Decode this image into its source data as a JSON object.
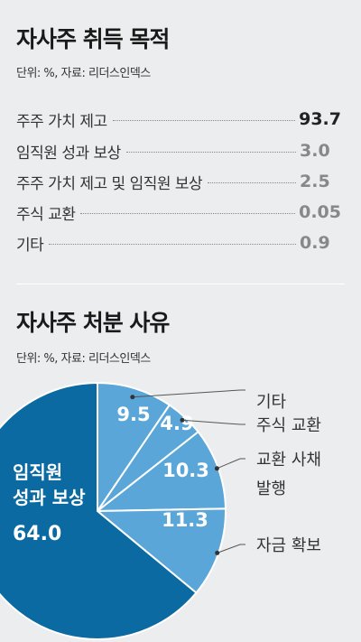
{
  "acquisition": {
    "title": "자사주 취득 목적",
    "unit": "단위: %, 자료: 리더스인덱스",
    "items": [
      {
        "label": "주주 가치 제고",
        "value": "93.7"
      },
      {
        "label": "임직원 성과 보상",
        "value": "3.0"
      },
      {
        "label": "주주 가치 제고 및 임직원 보상",
        "value": "2.5"
      },
      {
        "label": "주식 교환",
        "value": "0.05"
      },
      {
        "label": "기타",
        "value": "0.9"
      }
    ]
  },
  "disposal": {
    "title": "자사주 처분 사유",
    "unit": "단위: %, 자료: 리더스인덱스"
  },
  "chart_data": [
    {
      "type": "table",
      "title": "자사주 취득 목적",
      "categories": [
        "주주 가치 제고",
        "임직원 성과 보상",
        "주주 가치 제고 및 임직원 보상",
        "주식 교환",
        "기타"
      ],
      "values": [
        93.7,
        3.0,
        2.5,
        0.05,
        0.9
      ]
    },
    {
      "type": "pie",
      "title": "자사주 처분 사유",
      "slices": [
        {
          "label": "기타",
          "value": 9.5,
          "value_text": "9.5",
          "color": "#5aa6d8"
        },
        {
          "label": "주식 교환",
          "value": 4.9,
          "value_text": "4.9",
          "color": "#5aa6d8"
        },
        {
          "label": "교환 사채 발행",
          "value": 10.3,
          "value_text": "10.3",
          "color": "#5aa6d8"
        },
        {
          "label": "자금 확보",
          "value": 11.3,
          "value_text": "11.3",
          "color": "#5aa6d8"
        },
        {
          "label": "임직원 성과 보상",
          "value": 64.0,
          "value_text": "64.0",
          "color": "#0a6aa1"
        }
      ]
    }
  ],
  "colors": {
    "main_slice": "#0a6aa1",
    "minor_slice": "#5aa6d8",
    "background": "#ecedee"
  }
}
